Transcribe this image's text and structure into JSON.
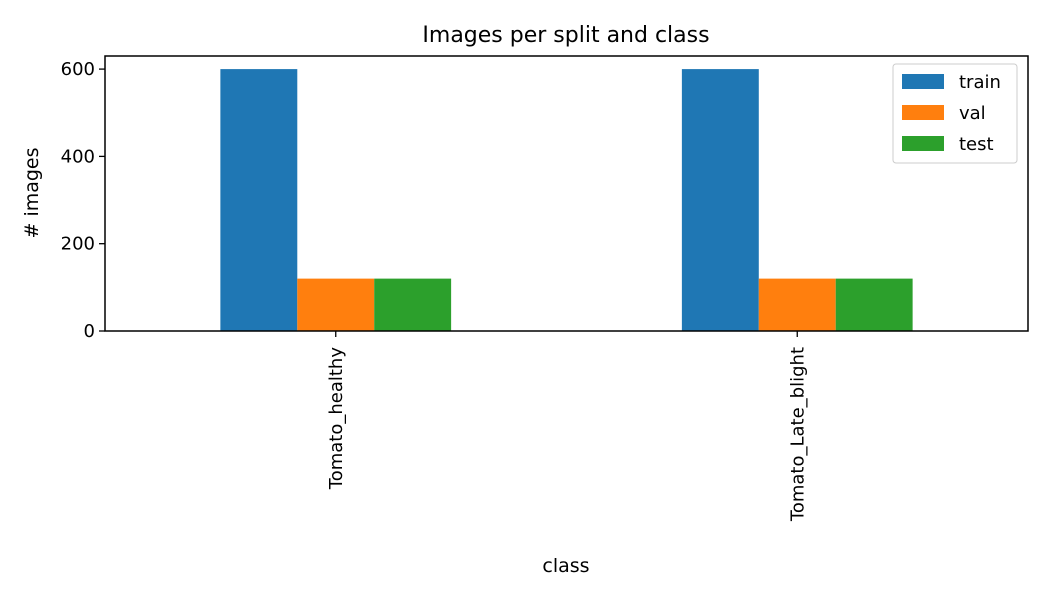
{
  "colors": {
    "train": "#1f77b4",
    "val": "#ff7f0e",
    "test": "#2ca02c",
    "axes": "#000000",
    "background": "#ffffff",
    "legend_border": "#cccccc"
  },
  "chart_data": {
    "type": "bar",
    "title": "Images per split and class",
    "xlabel": "class",
    "ylabel": "# images",
    "categories": [
      "Tomato_healthy",
      "Tomato_Late_blight"
    ],
    "series": [
      {
        "name": "train",
        "values": [
          600,
          600
        ]
      },
      {
        "name": "val",
        "values": [
          120,
          120
        ]
      },
      {
        "name": "test",
        "values": [
          120,
          120
        ]
      }
    ],
    "ylim": [
      0,
      630
    ],
    "yticks": [
      0,
      200,
      400,
      600
    ],
    "legend_position": "top-right",
    "grid": false,
    "x_tick_rotation": 90
  }
}
